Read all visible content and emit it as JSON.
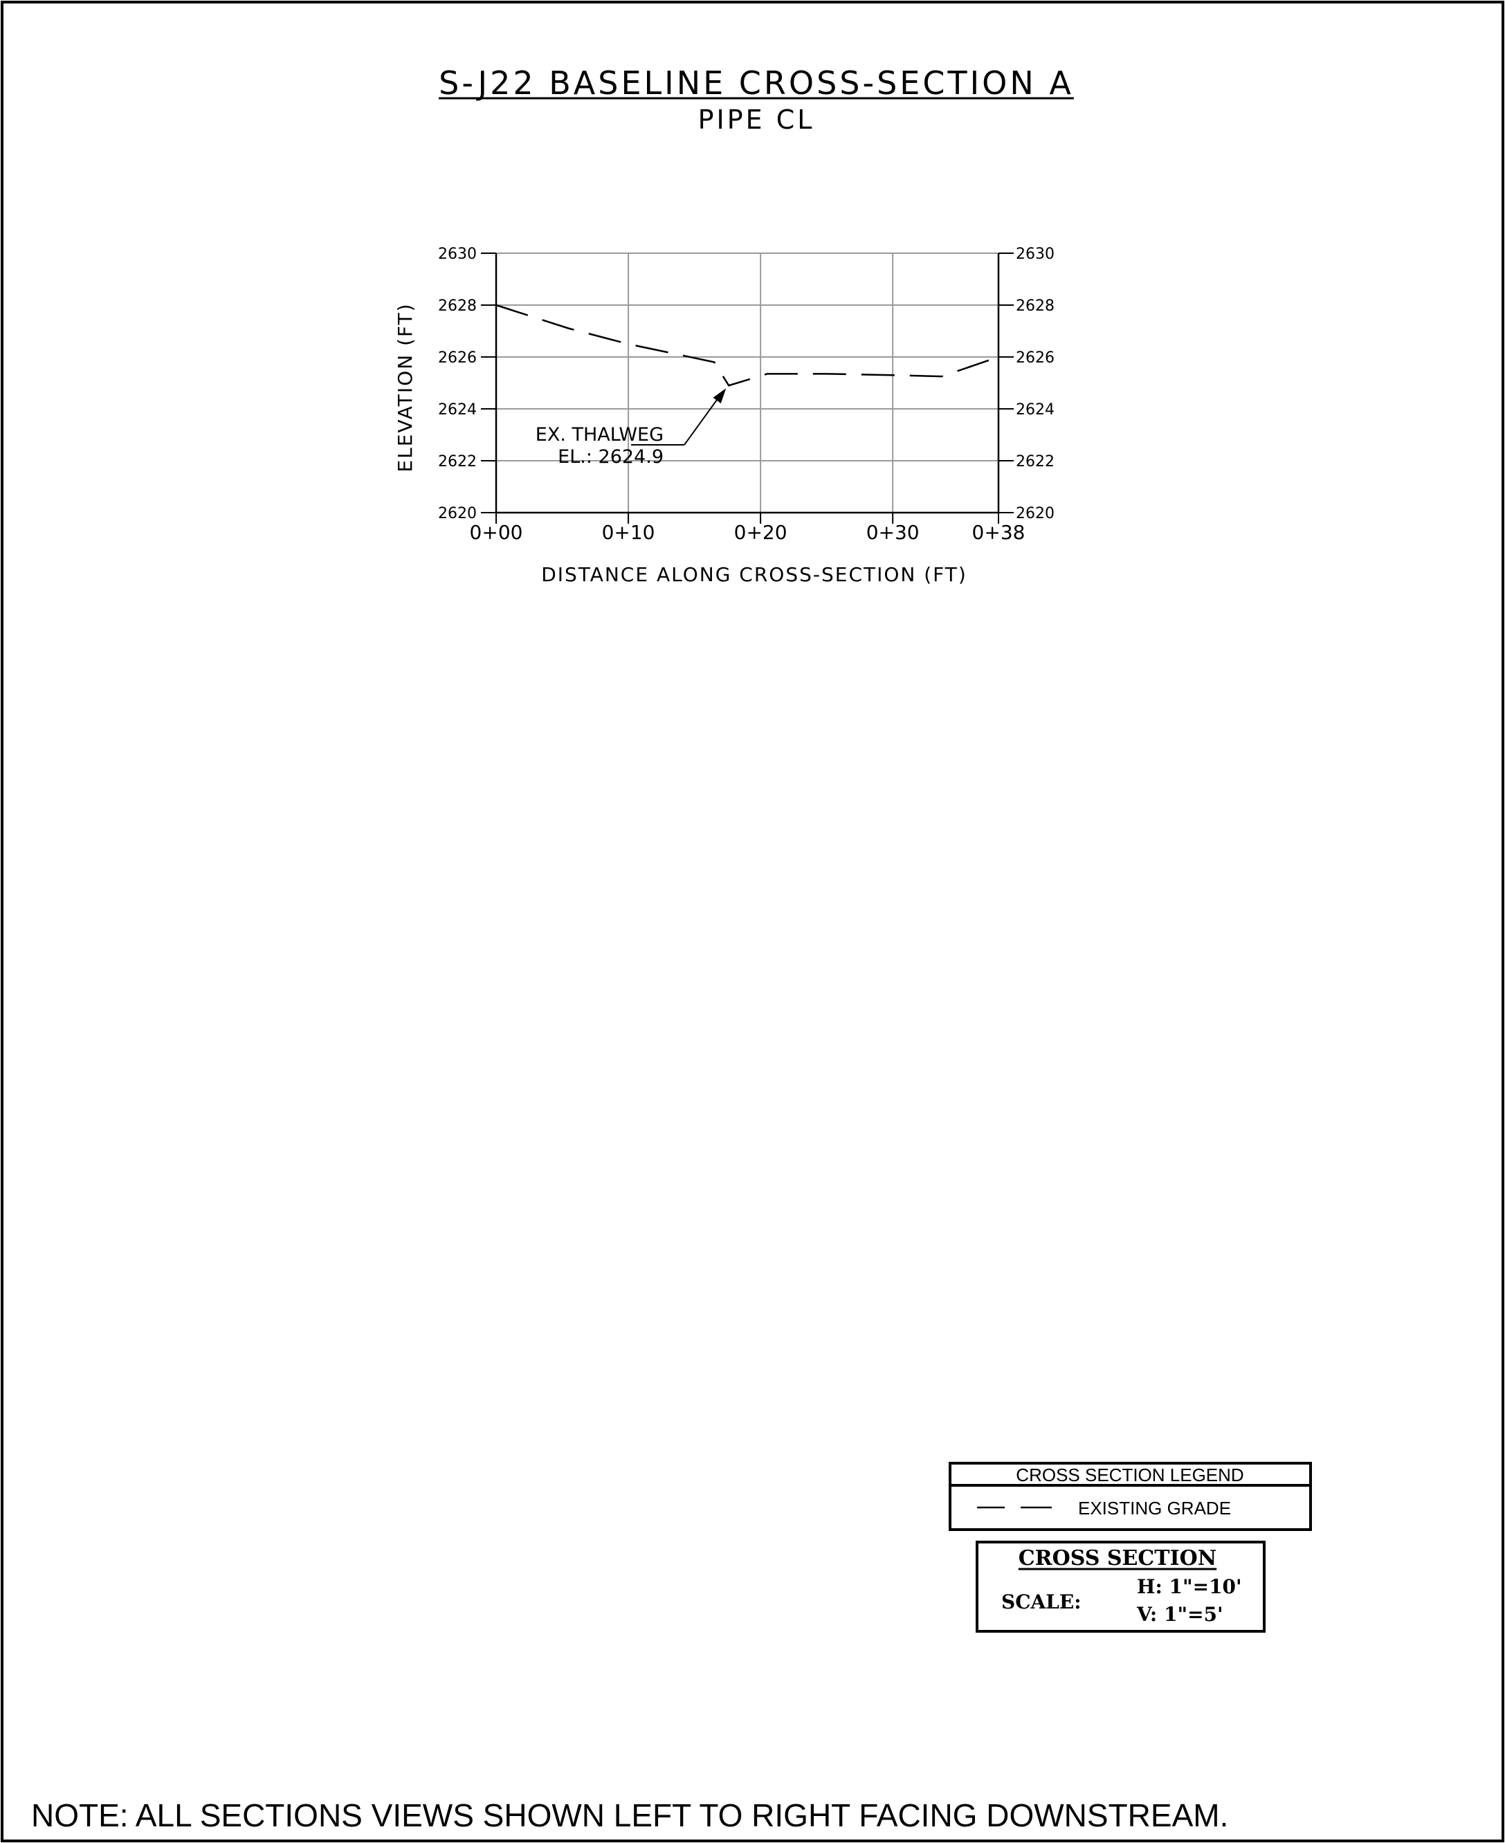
{
  "chart_data": {
    "type": "line",
    "title": "S-J22 BASELINE CROSS-SECTION A",
    "subtitle": "PIPE CL",
    "xlabel": "DISTANCE ALONG CROSS-SECTION (FT)",
    "ylabel": "ELEVATION (FT)",
    "xlim": [
      0,
      38
    ],
    "ylim": [
      2620,
      2630
    ],
    "x_ticks": [
      0,
      10,
      20,
      30,
      38
    ],
    "x_tick_labels": [
      "0+00",
      "0+10",
      "0+20",
      "0+30",
      "0+38"
    ],
    "y_ticks": [
      2620,
      2622,
      2624,
      2626,
      2628,
      2630
    ],
    "y_tick_labels": [
      "2620",
      "2622",
      "2624",
      "2626",
      "2628",
      "2630"
    ],
    "grid": true,
    "series": [
      {
        "line_style": "dashed",
        "x": [
          0,
          5.5,
          10,
          16.5,
          17.6,
          20.5,
          25,
          30,
          33.7,
          38
        ],
        "y": [
          2628,
          2627.1,
          2626.5,
          2625.8,
          2624.9,
          2625.35,
          2625.35,
          2625.3,
          2625.25,
          2626
        ]
      }
    ],
    "annotations": [
      {
        "line1": "EX. THALWEG",
        "line2": "EL.: 2624.9",
        "x": 17.6,
        "y": 2624.9
      }
    ]
  },
  "legend": {
    "title": "CROSS SECTION LEGEND",
    "entry_label": "EXISTING GRADE"
  },
  "scale_box": {
    "title": "CROSS SECTION",
    "label": "SCALE:",
    "h_value": "H:  1\"=10'",
    "v_value": "V:  1\"=5'"
  },
  "note": "NOTE: ALL SECTIONS VIEWS SHOWN LEFT TO RIGHT FACING DOWNSTREAM."
}
